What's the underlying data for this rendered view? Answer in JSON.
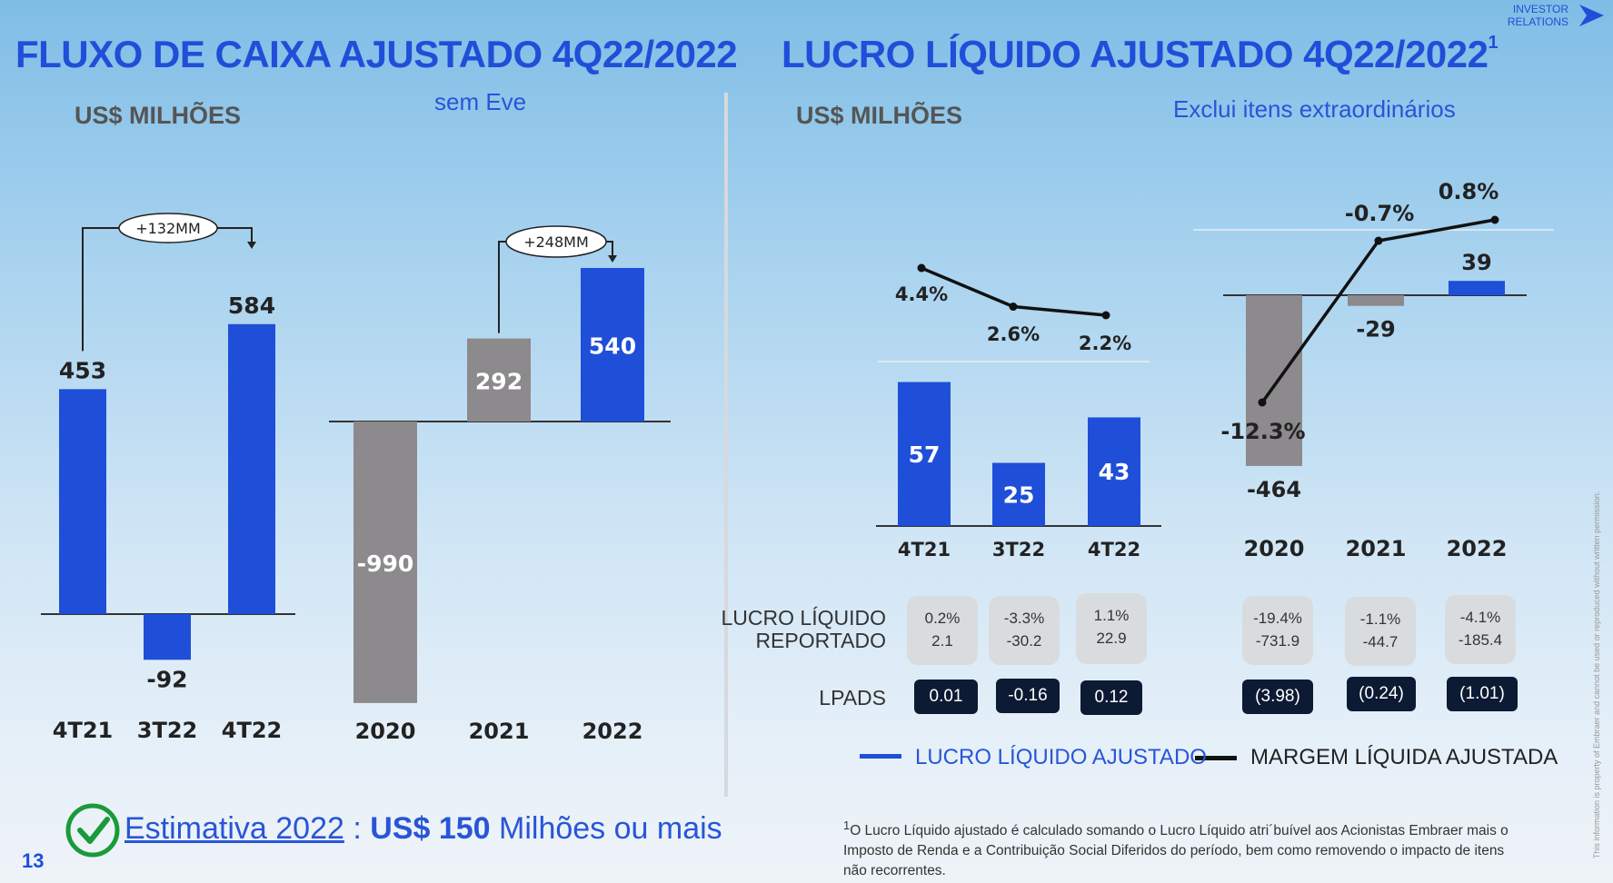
{
  "header": {
    "brand_line1": "INVESTOR",
    "brand_line2": "RELATIONS",
    "colors": {
      "blue": "#1f4fd8",
      "gray": "#8c8a8c",
      "dark": "#0c1a33"
    }
  },
  "left": {
    "title": "FLUXO DE CAIXA AJUSTADO 4Q22/2022",
    "unit": "US$ MILHÕES",
    "note": "sem Eve"
  },
  "right": {
    "title": "LUCRO LÍQUIDO AJUSTADO 4Q22/2022",
    "title_sup": "1",
    "unit": "US$ MILHÕES",
    "note": "Exclui itens extraordinários",
    "row_label_reported_line1": "LUCRO LÍQUIDO",
    "row_label_reported_line2": "REPORTADO",
    "row_label_eps": "LPADS",
    "reported": [
      {
        "pct": "0.2%",
        "val": "2.1"
      },
      {
        "pct": "-3.3%",
        "val": "-30.2"
      },
      {
        "pct": "1.1%",
        "val": "22.9"
      },
      {
        "pct": "-19.4%",
        "val": "-731.9"
      },
      {
        "pct": "-1.1%",
        "val": "-44.7"
      },
      {
        "pct": "-4.1%",
        "val": "-185.4"
      }
    ],
    "eps": [
      "0.01",
      "-0.16",
      "0.12",
      "(3.98)",
      "(0.24)",
      "(1.01)"
    ],
    "legend_bar": "LUCRO LÍQUIDO AJUSTADO",
    "legend_line": "MARGEM LÍQUIDA AJUSTADA"
  },
  "estimate": {
    "prefix": "Estimativa 2022",
    "sep": " : ",
    "amount": "US$ 150",
    "suffix": " Milhões ou mais",
    "check_icon": "check-circle-icon"
  },
  "footnote": {
    "sup": "1",
    "text": "O Lucro Líquido ajustado é calculado somando o Lucro Líquido atri´buível aos Acionistas Embraer mais o Imposto de Renda e a Contribuição Social Diferidos do período, bem como removendo o impacto de itens não recorrentes."
  },
  "page_number": "13",
  "vertical_note": "This information is property of Embraer and cannot be used or reproduced without written permission.",
  "chart_data": [
    {
      "type": "bar",
      "categories": [
        "4T21",
        "3T22",
        "4T22"
      ],
      "values": [
        453,
        -92,
        584
      ],
      "data_labels": [
        "453",
        "-92",
        "584"
      ],
      "annotation": "+132MM"
    },
    {
      "type": "bar",
      "categories": [
        "2020",
        "2021",
        "2022"
      ],
      "values": [
        -990,
        292,
        540
      ],
      "data_labels": [
        "-990",
        "292",
        "540"
      ],
      "bar_colors": [
        "gray",
        "gray",
        "blue"
      ],
      "annotation": "+248MM"
    },
    {
      "type": "bar+line",
      "categories": [
        "4T21",
        "3T22",
        "4T22"
      ],
      "series": [
        {
          "name": "LUCRO LÍQUIDO AJUSTADO",
          "values": [
            57,
            25,
            43
          ],
          "data_labels": [
            "57",
            "25",
            "43"
          ]
        },
        {
          "name": "MARGEM LÍQUIDA AJUSTADA",
          "values": [
            4.4,
            2.6,
            2.2
          ],
          "data_labels": [
            "4.4%",
            "2.6%",
            "2.2%"
          ]
        }
      ]
    },
    {
      "type": "bar+line",
      "categories": [
        "2020",
        "2021",
        "2022"
      ],
      "series": [
        {
          "name": "LUCRO LÍQUIDO AJUSTADO",
          "values": [
            -464,
            -29,
            39
          ],
          "data_labels": [
            "-464",
            "-29",
            "39"
          ],
          "bar_colors": [
            "gray",
            "gray",
            "blue"
          ]
        },
        {
          "name": "MARGEM LÍQUIDA AJUSTADA",
          "values": [
            -12.3,
            -0.7,
            0.8
          ],
          "data_labels": [
            "-12.3%",
            "-0.7%",
            "0.8%"
          ]
        }
      ]
    }
  ]
}
